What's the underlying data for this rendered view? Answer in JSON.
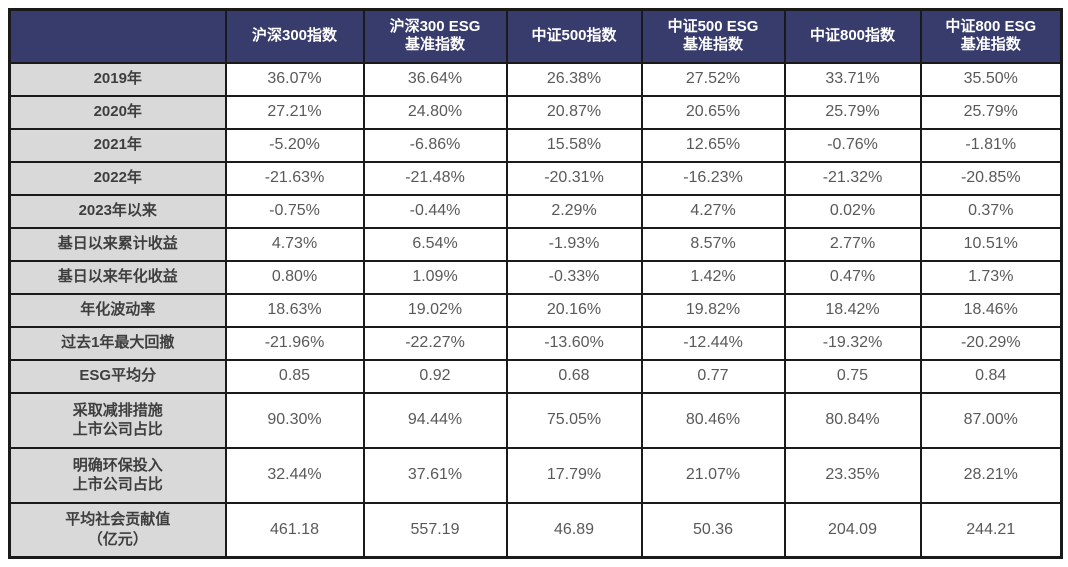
{
  "colors": {
    "header_bg": "#383c6c",
    "header_text": "#ffffff",
    "label_bg": "#d9d9d9",
    "label_text": "#3e3e3e",
    "value_text": "#595959",
    "border": "#1a1a1a"
  },
  "chart_data": {
    "type": "table",
    "title": "",
    "columns": [
      "沪深300指数",
      "沪深300 ESG 基准指数",
      "中证500指数",
      "中证500 ESG 基准指数",
      "中证800指数",
      "中证800 ESG 基准指数"
    ],
    "columns_display": [
      [
        "沪深300指数"
      ],
      [
        "沪深300 ESG",
        "基准指数"
      ],
      [
        "中证500指数"
      ],
      [
        "中证500 ESG",
        "基准指数"
      ],
      [
        "中证800指数"
      ],
      [
        "中证800 ESG",
        "基准指数"
      ]
    ],
    "corner_label": "",
    "rows": [
      {
        "label": "2019年",
        "label_display": [
          "2019年"
        ],
        "tall": false,
        "values": [
          "36.07%",
          "36.64%",
          "26.38%",
          "27.52%",
          "33.71%",
          "35.50%"
        ]
      },
      {
        "label": "2020年",
        "label_display": [
          "2020年"
        ],
        "tall": false,
        "values": [
          "27.21%",
          "24.80%",
          "20.87%",
          "20.65%",
          "25.79%",
          "25.79%"
        ]
      },
      {
        "label": "2021年",
        "label_display": [
          "2021年"
        ],
        "tall": false,
        "values": [
          "-5.20%",
          "-6.86%",
          "15.58%",
          "12.65%",
          "-0.76%",
          "-1.81%"
        ]
      },
      {
        "label": "2022年",
        "label_display": [
          "2022年"
        ],
        "tall": false,
        "values": [
          "-21.63%",
          "-21.48%",
          "-20.31%",
          "-16.23%",
          "-21.32%",
          "-20.85%"
        ]
      },
      {
        "label": "2023年以来",
        "label_display": [
          "2023年以来"
        ],
        "tall": false,
        "values": [
          "-0.75%",
          "-0.44%",
          "2.29%",
          "4.27%",
          "0.02%",
          "0.37%"
        ]
      },
      {
        "label": "基日以来累计收益",
        "label_display": [
          "基日以来累计收益"
        ],
        "tall": false,
        "values": [
          "4.73%",
          "6.54%",
          "-1.93%",
          "8.57%",
          "2.77%",
          "10.51%"
        ]
      },
      {
        "label": "基日以来年化收益",
        "label_display": [
          "基日以来年化收益"
        ],
        "tall": false,
        "values": [
          "0.80%",
          "1.09%",
          "-0.33%",
          "1.42%",
          "0.47%",
          "1.73%"
        ]
      },
      {
        "label": "年化波动率",
        "label_display": [
          "年化波动率"
        ],
        "tall": false,
        "values": [
          "18.63%",
          "19.02%",
          "20.16%",
          "19.82%",
          "18.42%",
          "18.46%"
        ]
      },
      {
        "label": "过去1年最大回撤",
        "label_display": [
          "过去1年最大回撤"
        ],
        "tall": false,
        "values": [
          "-21.96%",
          "-22.27%",
          "-13.60%",
          "-12.44%",
          "-19.32%",
          "-20.29%"
        ]
      },
      {
        "label": "ESG平均分",
        "label_display": [
          "ESG平均分"
        ],
        "tall": false,
        "values": [
          "0.85",
          "0.92",
          "0.68",
          "0.77",
          "0.75",
          "0.84"
        ]
      },
      {
        "label": "采取减排措施上市公司占比",
        "label_display": [
          "采取减排措施",
          "上市公司占比"
        ],
        "tall": true,
        "values": [
          "90.30%",
          "94.44%",
          "75.05%",
          "80.46%",
          "80.84%",
          "87.00%"
        ]
      },
      {
        "label": "明确环保投入上市公司占比",
        "label_display": [
          "明确环保投入",
          "上市公司占比"
        ],
        "tall": true,
        "values": [
          "32.44%",
          "37.61%",
          "17.79%",
          "21.07%",
          "23.35%",
          "28.21%"
        ]
      },
      {
        "label": "平均社会贡献值（亿元）",
        "label_display": [
          "平均社会贡献值",
          "（亿元）"
        ],
        "tall": true,
        "values": [
          "461.18",
          "557.19",
          "46.89",
          "50.36",
          "204.09",
          "244.21"
        ]
      }
    ]
  }
}
